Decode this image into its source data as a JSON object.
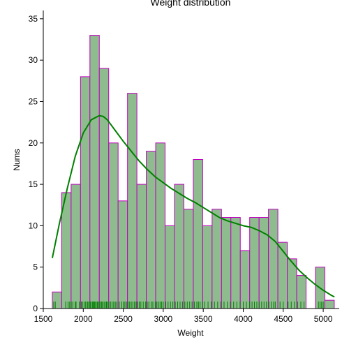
{
  "chart_data": {
    "type": "bar",
    "title": "Weight distribution",
    "xlabel": "Weight",
    "ylabel": "Nums",
    "xlim": [
      1500,
      5200
    ],
    "ylim": [
      0,
      36
    ],
    "xticks": [
      1500,
      2000,
      2500,
      3000,
      3500,
      4000,
      4500,
      5000
    ],
    "yticks": [
      0,
      5,
      10,
      15,
      20,
      25,
      30,
      35
    ],
    "bin_width": 117.5,
    "bin_start": 1613,
    "counts": [
      2,
      14,
      15,
      28,
      33,
      29,
      20,
      13,
      26,
      15,
      19,
      20,
      10,
      15,
      12,
      18,
      10,
      12,
      11,
      11,
      7,
      11,
      11,
      12,
      8,
      6,
      4,
      0,
      5,
      1
    ],
    "kde": {
      "x": [
        1613,
        1700,
        1800,
        1900,
        2000,
        2100,
        2200,
        2250,
        2300,
        2400,
        2500,
        2600,
        2700,
        2800,
        2900,
        3000,
        3100,
        3200,
        3300,
        3400,
        3500,
        3600,
        3700,
        3800,
        3900,
        4000,
        4100,
        4200,
        4300,
        4400,
        4500,
        4600,
        4700,
        4800,
        4900,
        5000,
        5100,
        5140
      ],
      "y": [
        6.1,
        10.2,
        14.5,
        18.4,
        21.2,
        22.8,
        23.3,
        23.2,
        22.8,
        21.5,
        20.2,
        19.0,
        17.8,
        16.8,
        15.9,
        15.2,
        14.5,
        13.9,
        13.3,
        12.8,
        12.2,
        11.6,
        11.0,
        10.6,
        10.3,
        10.0,
        9.8,
        9.4,
        8.9,
        8.1,
        6.9,
        5.7,
        4.6,
        3.7,
        2.9,
        2.2,
        1.6,
        1.4
      ]
    },
    "rug": [
      1630,
      1650,
      1780,
      1810,
      1830,
      1850,
      1870,
      1900,
      1910,
      1950,
      1975,
      1990,
      2010,
      2030,
      2050,
      2060,
      2080,
      2090,
      2110,
      2120,
      2130,
      2140,
      2155,
      2160,
      2175,
      2185,
      2200,
      2215,
      2230,
      2240,
      2260,
      2275,
      2290,
      2300,
      2320,
      2340,
      2360,
      2380,
      2400,
      2420,
      2450,
      2480,
      2500,
      2520,
      2540,
      2560,
      2580,
      2600,
      2620,
      2640,
      2660,
      2680,
      2700,
      2720,
      2750,
      2780,
      2800,
      2820,
      2850,
      2870,
      2900,
      2920,
      2940,
      2960,
      2980,
      3000,
      3030,
      3060,
      3090,
      3120,
      3150,
      3180,
      3210,
      3240,
      3270,
      3300,
      3330,
      3360,
      3390,
      3420,
      3440,
      3460,
      3490,
      3520,
      3560,
      3600,
      3640,
      3680,
      3720,
      3760,
      3800,
      3840,
      3880,
      3920,
      3960,
      4000,
      4040,
      4080,
      4110,
      4140,
      4170,
      4200,
      4230,
      4260,
      4290,
      4320,
      4350,
      4380,
      4400,
      4460,
      4500,
      4560,
      4600,
      4640,
      4680,
      4720,
      4760,
      4940,
      4960,
      4980,
      5000
    ],
    "colors": {
      "bar_fill": "#8fbc8f",
      "bar_edge": "#bf00bf",
      "kde_line": "#008000",
      "rug": "#008000",
      "axis": "#000000"
    }
  }
}
